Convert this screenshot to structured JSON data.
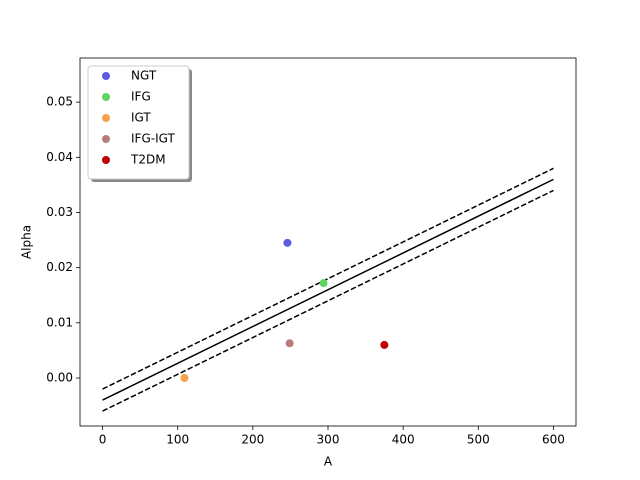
{
  "chart_data": {
    "type": "scatter",
    "xlabel": "A",
    "ylabel": "Alpha",
    "xlim": [
      -30,
      630
    ],
    "xticks": [
      0,
      100,
      200,
      300,
      400,
      500,
      600
    ],
    "ylim": [
      -0.0087,
      0.058
    ],
    "yticks": [
      {
        "value": 0,
        "label": "0.00"
      },
      {
        "value": 0.01,
        "label": "0.01"
      },
      {
        "value": 0.02,
        "label": "0.02"
      },
      {
        "value": 0.03,
        "label": "0.03"
      },
      {
        "value": 0.04,
        "label": "0.04"
      },
      {
        "value": 0.05,
        "label": "0.05"
      }
    ],
    "legend": "upper left",
    "series": [
      {
        "name": "NGT",
        "color": "#5b5bdf",
        "x": [
          246
        ],
        "values": [
          0.0245
        ]
      },
      {
        "name": "IFG",
        "color": "#5ed45e",
        "x": [
          294
        ],
        "values": [
          0.0172
        ]
      },
      {
        "name": "IGT",
        "color": "#f8a050",
        "x": [
          109
        ],
        "values": [
          0
        ]
      },
      {
        "name": "IFG-IGT",
        "color": "#b77c7c",
        "x": [
          249
        ],
        "values": [
          0.0063
        ]
      },
      {
        "name": "T2DM",
        "color": "#c00000",
        "x": [
          375
        ],
        "values": [
          0.006
        ]
      }
    ],
    "lines": [
      {
        "color": "#000000",
        "dashed": false,
        "x": [
          0,
          600
        ],
        "values": [
          -0.004,
          0.036
        ]
      },
      {
        "color": "#000000",
        "dashed": true,
        "x": [
          0,
          600
        ],
        "values": [
          -0.002,
          0.038
        ]
      },
      {
        "color": "#000000",
        "dashed": true,
        "x": [
          0,
          600
        ],
        "values": [
          -0.006,
          0.034
        ]
      }
    ]
  }
}
